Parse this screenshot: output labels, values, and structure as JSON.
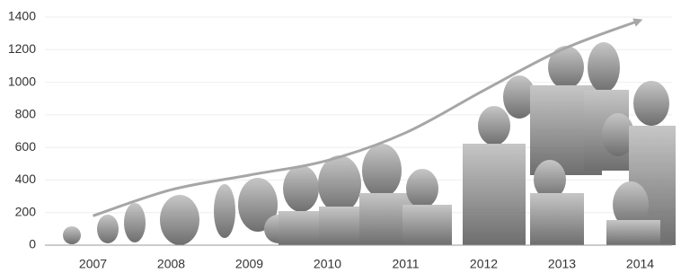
{
  "chart_data": {
    "type": "line",
    "categories": [
      "2007",
      "2008",
      "2009",
      "2010",
      "2011",
      "2012",
      "2013",
      "2014"
    ],
    "values": [
      180,
      340,
      430,
      520,
      690,
      950,
      1200,
      1380
    ],
    "color": "#a6a6a6",
    "ylim": [
      0,
      1400
    ],
    "yticks": [
      0,
      200,
      400,
      600,
      800,
      1000,
      1200,
      1400
    ],
    "grid": true
  }
}
